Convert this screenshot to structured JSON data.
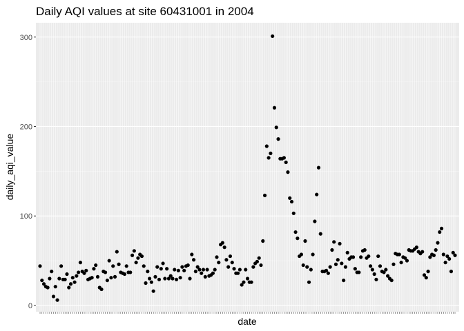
{
  "chart_data": {
    "type": "scatter",
    "title": "Daily AQI values at site 60431001 in 2004",
    "xlabel": "date",
    "ylabel": "daily_aqi_value",
    "x_tick_labels_shown": false,
    "yticks": [
      0,
      100,
      200,
      300
    ],
    "ylim": [
      -7,
      316
    ],
    "grid": true,
    "background": "#EBEBEB",
    "point_color": "#000000",
    "values": [
      44,
      28,
      24,
      21,
      20,
      30,
      38,
      10,
      21,
      6,
      30,
      44,
      29,
      29,
      35,
      20,
      24,
      31,
      26,
      33,
      37,
      48,
      38,
      36,
      39,
      29,
      30,
      31,
      41,
      45,
      32,
      20,
      18,
      38,
      37,
      28,
      50,
      31,
      44,
      32,
      60,
      46,
      37,
      36,
      35,
      44,
      37,
      37,
      56,
      61,
      48,
      53,
      57,
      55,
      44,
      25,
      38,
      30,
      26,
      16,
      32,
      43,
      29,
      41,
      47,
      30,
      41,
      30,
      33,
      30,
      40,
      29,
      39,
      31,
      43,
      39,
      44,
      45,
      30,
      57,
      51,
      38,
      43,
      40,
      36,
      40,
      32,
      40,
      33,
      34,
      36,
      40,
      54,
      48,
      68,
      70,
      65,
      51,
      43,
      55,
      48,
      41,
      36,
      36,
      40,
      23,
      26,
      40,
      30,
      26,
      26,
      43,
      47,
      49,
      53,
      45,
      72,
      123,
      178,
      165,
      170,
      301,
      221,
      199,
      186,
      164,
      164,
      165,
      160,
      149,
      120,
      116,
      103,
      82,
      75,
      55,
      57,
      45,
      72,
      43,
      26,
      40,
      57,
      94,
      124,
      154,
      80,
      38,
      38,
      39,
      36,
      43,
      62,
      71,
      46,
      51,
      69,
      47,
      28,
      43,
      59,
      52,
      54,
      54,
      41,
      37,
      37,
      54,
      61,
      62,
      53,
      55,
      44,
      40,
      35,
      29,
      55,
      44,
      38,
      37,
      40,
      33,
      30,
      28,
      46,
      58,
      57,
      57,
      48,
      54,
      53,
      50,
      62,
      61,
      61,
      63,
      65,
      60,
      58,
      60,
      34,
      31,
      38,
      54,
      57,
      56,
      62,
      70,
      82,
      86,
      57,
      48,
      55,
      52,
      38,
      59,
      56
    ]
  }
}
